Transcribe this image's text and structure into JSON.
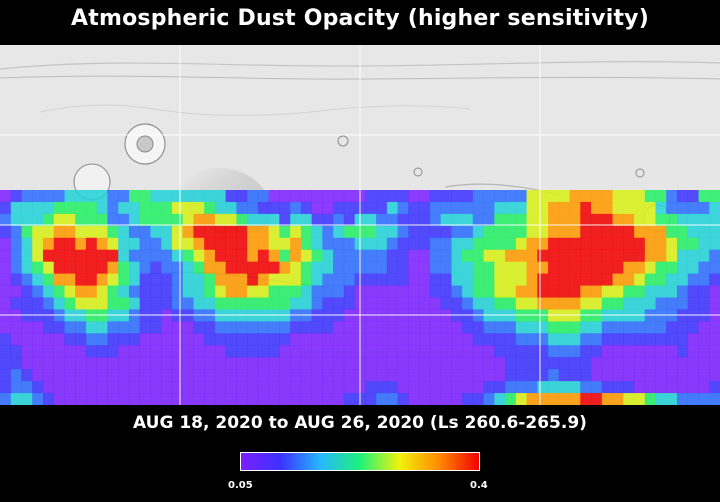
{
  "title": "Atmospheric Dust Opacity (higher sensitivity)",
  "date_range": "AUG 18, 2020 to AUG 26, 2020 (Ls 260.6-265.9)",
  "colorbar": {
    "min_label": "0.05",
    "max_label": "0.4",
    "min_value": 0.05,
    "max_value": 0.4,
    "colors": [
      "#7b1fff",
      "#3b32ff",
      "#27b8ff",
      "#1ef27a",
      "#f2f10c",
      "#ff8a00",
      "#f20000"
    ]
  },
  "map": {
    "type": "map",
    "basemap": "grayscale-shaded-relief",
    "grid": true,
    "no_data_band": "north-polar-region",
    "opacity_grid_rows": [
      "0122223333224433333331122000000000111100111122222555566665554421144",
      "1333344443233444555433221112100111113211222222333556667665555322223",
      "2333455444223444456655433313311213322111233322444556667776655443333",
      "1245566555432233567778766545432344433211112234444556667777766644333",
      "0235678676533223556788766556432223332111223344445667777777776654433",
      "0235777787732222345678767646543222221100223445566677788777776653332",
      "0234577787643212234667777765433222221100223344555667787777665443322",
      "0123466776543111233466676555432221111100113344555677777776654433221",
      "0012345665432111233456655444322210000000112344556677776655443332110",
      "0111234555443111223344444443321110000000011233445566665544333222110",
      "0011123344332110112233333332211100000000001123334445554433332221110",
      "0000112233222110001122222221111000000000000112223334443322222211100",
      "1000001122111000000111111110000000000000000011112223332211111111000",
      "1100000011100000000001111100000000000000000000111112221100000001000",
      "1100000000000000000000000000000000000000000000011111111000000000000",
      "1210000000000000000000000000000000000000000000011112111000000000000",
      "1221000000000000000000000000000000111000000001122233332211100000001",
      "2332100000000000000000000000000011122100000112345666667766554332222"
    ]
  }
}
